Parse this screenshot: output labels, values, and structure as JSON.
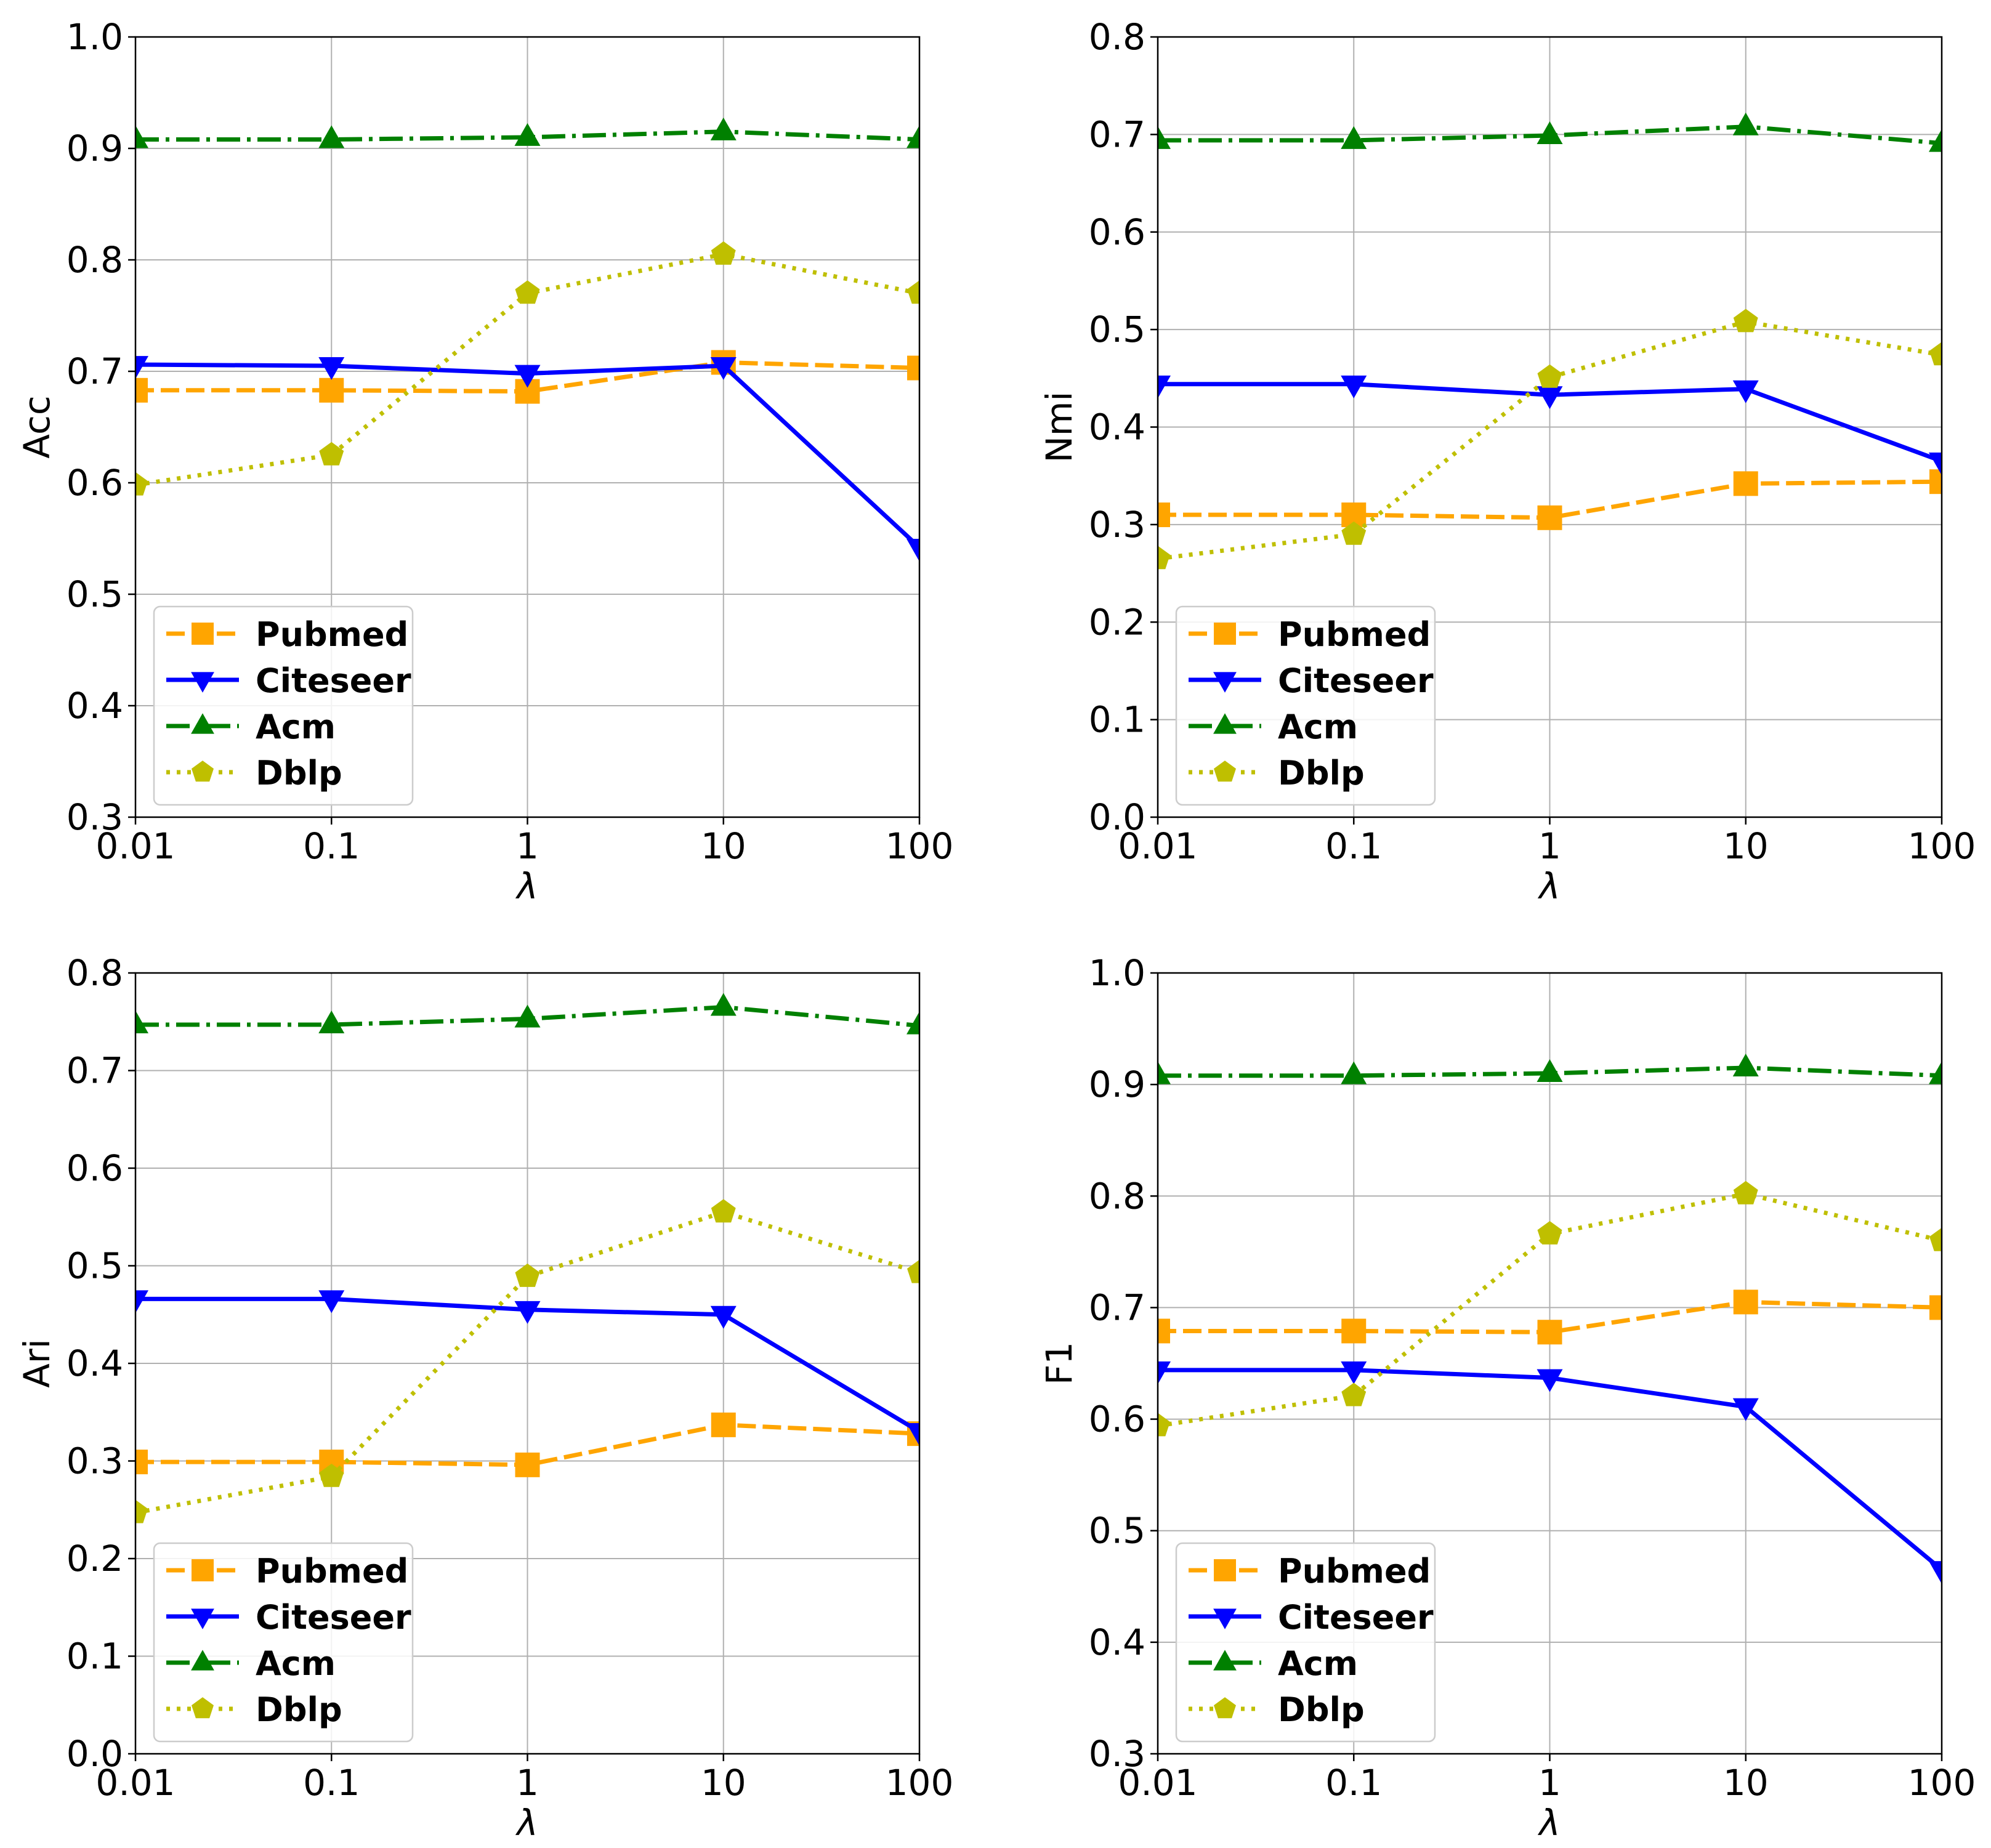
{
  "figure": {
    "name": "lambda-sensitivity-figure"
  },
  "series_styles": {
    "Pubmed": {
      "color": "#ffa500",
      "marker": "square",
      "dash": "30,11"
    },
    "Citeseer": {
      "color": "#0000ff",
      "marker": "triangle-down",
      "dash": ""
    },
    "Acm": {
      "color": "#008000",
      "marker": "triangle-up",
      "dash": "38,11,6,11"
    },
    "Dblp": {
      "color": "#bfbf00",
      "marker": "pentagon",
      "dash": "6,11"
    }
  },
  "chart_data": [
    {
      "type": "line",
      "title": "",
      "xlabel": "λ",
      "ylabel": "Acc",
      "categories": [
        "0.01",
        "0.1",
        "1",
        "10",
        "100"
      ],
      "ylim": [
        0.3,
        1.0
      ],
      "yticks": [
        "0.3",
        "0.4",
        "0.5",
        "0.6",
        "0.7",
        "0.8",
        "0.9",
        "1.0"
      ],
      "grid": true,
      "legend": "lower-left",
      "series": [
        {
          "name": "Pubmed",
          "values": [
            0.683,
            0.683,
            0.682,
            0.708,
            0.703
          ]
        },
        {
          "name": "Citeseer",
          "values": [
            0.706,
            0.705,
            0.698,
            0.705,
            0.542
          ]
        },
        {
          "name": "Acm",
          "values": [
            0.908,
            0.908,
            0.91,
            0.915,
            0.908
          ]
        },
        {
          "name": "Dblp",
          "values": [
            0.598,
            0.625,
            0.77,
            0.805,
            0.77
          ]
        }
      ]
    },
    {
      "type": "line",
      "title": "",
      "xlabel": "λ",
      "ylabel": "Nmi",
      "categories": [
        "0.01",
        "0.1",
        "1",
        "10",
        "100"
      ],
      "ylim": [
        0.0,
        0.8
      ],
      "yticks": [
        "0.0",
        "0.1",
        "0.2",
        "0.3",
        "0.4",
        "0.5",
        "0.6",
        "0.7",
        "0.8"
      ],
      "grid": true,
      "legend": "lower-left",
      "series": [
        {
          "name": "Pubmed",
          "values": [
            0.31,
            0.31,
            0.307,
            0.342,
            0.344
          ]
        },
        {
          "name": "Citeseer",
          "values": [
            0.444,
            0.444,
            0.433,
            0.439,
            0.365
          ]
        },
        {
          "name": "Acm",
          "values": [
            0.694,
            0.694,
            0.699,
            0.708,
            0.691
          ]
        },
        {
          "name": "Dblp",
          "values": [
            0.265,
            0.29,
            0.451,
            0.508,
            0.474
          ]
        }
      ]
    },
    {
      "type": "line",
      "title": "",
      "xlabel": "λ",
      "ylabel": "Ari",
      "categories": [
        "0.01",
        "0.1",
        "1",
        "10",
        "100"
      ],
      "ylim": [
        0.0,
        0.8
      ],
      "yticks": [
        "0.0",
        "0.1",
        "0.2",
        "0.3",
        "0.4",
        "0.5",
        "0.6",
        "0.7",
        "0.8"
      ],
      "grid": true,
      "legend": "lower-left",
      "series": [
        {
          "name": "Pubmed",
          "values": [
            0.299,
            0.299,
            0.296,
            0.337,
            0.328
          ]
        },
        {
          "name": "Citeseer",
          "values": [
            0.466,
            0.466,
            0.455,
            0.45,
            0.33
          ]
        },
        {
          "name": "Acm",
          "values": [
            0.747,
            0.747,
            0.753,
            0.765,
            0.746
          ]
        },
        {
          "name": "Dblp",
          "values": [
            0.247,
            0.284,
            0.489,
            0.555,
            0.493
          ]
        }
      ]
    },
    {
      "type": "line",
      "title": "",
      "xlabel": "λ",
      "ylabel": "F1",
      "categories": [
        "0.01",
        "0.1",
        "1",
        "10",
        "100"
      ],
      "ylim": [
        0.3,
        1.0
      ],
      "yticks": [
        "0.3",
        "0.4",
        "0.5",
        "0.6",
        "0.7",
        "0.8",
        "0.9",
        "1.0"
      ],
      "grid": true,
      "legend": "lower-left",
      "series": [
        {
          "name": "Pubmed",
          "values": [
            0.679,
            0.679,
            0.678,
            0.705,
            0.7
          ]
        },
        {
          "name": "Citeseer",
          "values": [
            0.644,
            0.644,
            0.637,
            0.611,
            0.465
          ]
        },
        {
          "name": "Acm",
          "values": [
            0.908,
            0.908,
            0.91,
            0.915,
            0.908
          ]
        },
        {
          "name": "Dblp",
          "values": [
            0.594,
            0.621,
            0.766,
            0.802,
            0.76
          ]
        }
      ]
    }
  ]
}
